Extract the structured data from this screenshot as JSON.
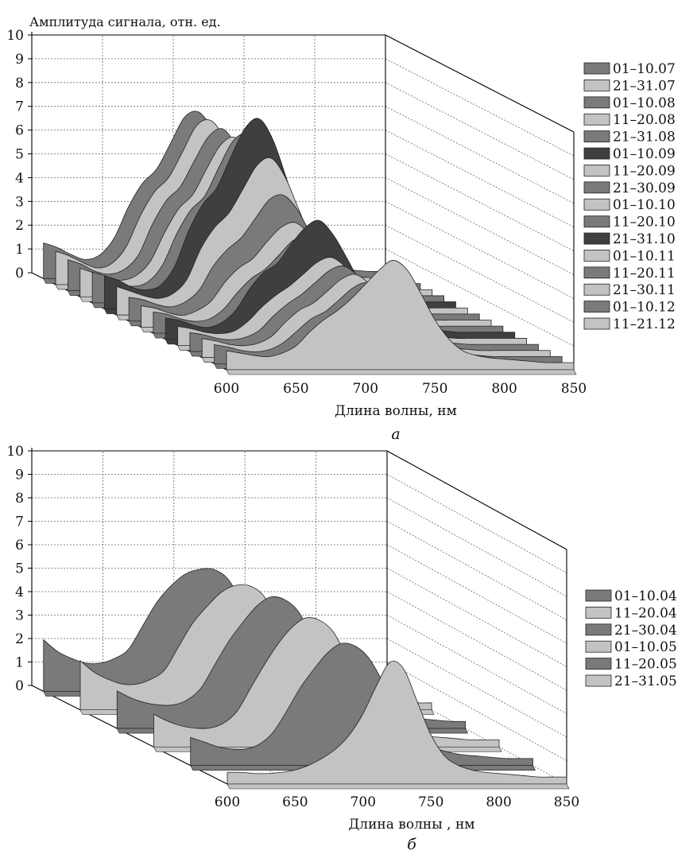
{
  "colors": {
    "dark": "#3f3f3f",
    "medium": "#7a7a7a",
    "light": "#c3c3c3",
    "axis": "#000000",
    "grid": "#666666"
  },
  "chart_data": [
    {
      "type": "area",
      "subtype": "3d-waterfall",
      "panel_label": "а",
      "ylabel": "Амплитуда сигнала, отн. ед.",
      "xlabel": "Длина волны, нм",
      "x_ticks": [
        "600",
        "650",
        "700",
        "750",
        "800",
        "850"
      ],
      "y_ticks": [
        "0",
        "1",
        "2",
        "3",
        "4",
        "5",
        "6",
        "7",
        "8",
        "9",
        "10"
      ],
      "xlim": [
        600,
        850
      ],
      "ylim": [
        0,
        10
      ],
      "grid": true,
      "legend_position": "right",
      "wavelengths": [
        600,
        610,
        620,
        630,
        640,
        650,
        660,
        670,
        680,
        690,
        700,
        710,
        720,
        730,
        740,
        750,
        760,
        770,
        780,
        790,
        800,
        810,
        820,
        830,
        840,
        850
      ],
      "series": [
        {
          "name": "01–10.07",
          "color": "medium",
          "values": [
            1.5,
            1.3,
            1.0,
            0.8,
            1.0,
            1.7,
            3.0,
            4.0,
            4.6,
            5.7,
            6.8,
            7.0,
            6.2,
            4.8,
            3.3,
            2.0,
            1.2,
            0.8,
            0.6,
            0.5,
            0.45,
            0.4,
            0.35,
            0.3,
            0.3,
            0.3
          ]
        },
        {
          "name": "21–31.07",
          "color": "light",
          "values": [
            1.4,
            1.2,
            0.9,
            0.7,
            0.9,
            1.6,
            2.9,
            3.9,
            4.5,
            5.6,
            6.7,
            6.9,
            6.1,
            4.7,
            3.2,
            1.9,
            1.1,
            0.7,
            0.55,
            0.45,
            0.4,
            0.35,
            0.3,
            0.3,
            0.3,
            0.3
          ]
        },
        {
          "name": "01–10.08",
          "color": "medium",
          "values": [
            1.3,
            1.1,
            0.8,
            0.7,
            0.9,
            1.5,
            2.8,
            3.8,
            4.4,
            5.5,
            6.5,
            6.8,
            6.0,
            4.6,
            3.1,
            1.9,
            1.1,
            0.7,
            0.55,
            0.45,
            0.4,
            0.35,
            0.3,
            0.3,
            0.3,
            0.3
          ]
        },
        {
          "name": "11–20.08",
          "color": "light",
          "values": [
            1.2,
            1.0,
            0.8,
            0.7,
            0.9,
            1.5,
            2.7,
            3.7,
            4.3,
            5.4,
            6.4,
            6.7,
            5.9,
            4.5,
            3.0,
            1.8,
            1.0,
            0.7,
            0.5,
            0.4,
            0.4,
            0.35,
            0.3,
            0.3,
            0.3,
            0.3
          ]
        },
        {
          "name": "21–31.08",
          "color": "medium",
          "values": [
            1.3,
            1.1,
            0.8,
            0.7,
            0.9,
            1.6,
            2.9,
            3.9,
            4.5,
            5.7,
            6.8,
            7.1,
            6.3,
            4.8,
            3.3,
            2.0,
            1.1,
            0.7,
            0.55,
            0.45,
            0.4,
            0.35,
            0.3,
            0.3,
            0.3,
            0.3
          ]
        },
        {
          "name": "01–10.09",
          "color": "dark",
          "values": [
            1.4,
            1.2,
            0.9,
            0.8,
            1.0,
            1.8,
            3.3,
            4.4,
            5.1,
            6.4,
            7.6,
            8.0,
            7.1,
            5.4,
            3.6,
            2.2,
            1.2,
            0.8,
            0.6,
            0.5,
            0.45,
            0.4,
            0.35,
            0.3,
            0.3,
            0.3
          ]
        },
        {
          "name": "11–20.09",
          "color": "light",
          "values": [
            1.2,
            1.0,
            0.8,
            0.7,
            0.9,
            1.5,
            2.8,
            3.7,
            4.3,
            5.3,
            6.3,
            6.6,
            5.8,
            4.4,
            3.0,
            1.8,
            1.0,
            0.7,
            0.5,
            0.4,
            0.4,
            0.35,
            0.3,
            0.3,
            0.3,
            0.3
          ]
        },
        {
          "name": "21–30.09",
          "color": "medium",
          "values": [
            1.0,
            0.9,
            0.7,
            0.6,
            0.8,
            1.3,
            2.3,
            3.0,
            3.5,
            4.3,
            5.1,
            5.3,
            4.7,
            3.6,
            2.4,
            1.5,
            0.9,
            0.6,
            0.5,
            0.4,
            0.35,
            0.3,
            0.3,
            0.3,
            0.3,
            0.3
          ]
        },
        {
          "name": "01–10.10",
          "color": "light",
          "values": [
            0.9,
            0.8,
            0.6,
            0.5,
            0.7,
            1.1,
            1.9,
            2.5,
            2.9,
            3.6,
            4.2,
            4.4,
            3.9,
            3.0,
            2.0,
            1.3,
            0.8,
            0.55,
            0.45,
            0.4,
            0.35,
            0.3,
            0.3,
            0.3,
            0.3,
            0.3
          ]
        },
        {
          "name": "11–20.10",
          "color": "medium",
          "values": [
            0.9,
            0.8,
            0.6,
            0.5,
            0.6,
            1.0,
            1.7,
            2.3,
            2.7,
            3.3,
            3.9,
            4.1,
            3.6,
            2.8,
            1.9,
            1.2,
            0.7,
            0.5,
            0.4,
            0.35,
            0.3,
            0.3,
            0.3,
            0.3,
            0.3,
            0.3
          ]
        },
        {
          "name": "21–31.10",
          "color": "dark",
          "values": [
            0.9,
            0.8,
            0.6,
            0.5,
            0.7,
            1.2,
            2.1,
            2.8,
            3.2,
            4.0,
            4.7,
            5.0,
            4.4,
            3.4,
            2.3,
            1.4,
            0.8,
            0.55,
            0.45,
            0.4,
            0.35,
            0.3,
            0.3,
            0.3,
            0.3,
            0.3
          ]
        },
        {
          "name": "01–10.11",
          "color": "light",
          "values": [
            0.8,
            0.7,
            0.55,
            0.5,
            0.6,
            1.0,
            1.6,
            2.1,
            2.5,
            3.0,
            3.5,
            3.7,
            3.3,
            2.5,
            1.7,
            1.1,
            0.7,
            0.5,
            0.4,
            0.35,
            0.3,
            0.3,
            0.3,
            0.3,
            0.3,
            0.3
          ]
        },
        {
          "name": "11–20.11",
          "color": "medium",
          "values": [
            0.8,
            0.7,
            0.55,
            0.5,
            0.6,
            0.9,
            1.5,
            2.0,
            2.4,
            2.9,
            3.4,
            3.6,
            3.2,
            2.4,
            1.6,
            1.0,
            0.65,
            0.5,
            0.4,
            0.35,
            0.3,
            0.3,
            0.3,
            0.3,
            0.3,
            0.3
          ]
        },
        {
          "name": "21–30.11",
          "color": "light",
          "values": [
            0.8,
            0.7,
            0.55,
            0.5,
            0.6,
            0.9,
            1.5,
            2.0,
            2.3,
            2.8,
            3.3,
            3.5,
            3.1,
            2.4,
            1.6,
            1.0,
            0.65,
            0.5,
            0.4,
            0.35,
            0.3,
            0.3,
            0.3,
            0.3,
            0.3,
            0.3
          ]
        },
        {
          "name": "01–10.12",
          "color": "medium",
          "values": [
            0.8,
            0.7,
            0.55,
            0.5,
            0.6,
            0.9,
            1.4,
            1.9,
            2.2,
            2.7,
            3.2,
            3.4,
            3.0,
            2.3,
            1.5,
            1.0,
            0.65,
            0.5,
            0.4,
            0.35,
            0.3,
            0.3,
            0.3,
            0.3,
            0.3,
            0.3
          ]
        },
        {
          "name": "11–21.12",
          "color": "light",
          "values": [
            0.8,
            0.7,
            0.6,
            0.55,
            0.7,
            1.0,
            1.6,
            2.1,
            2.5,
            3.0,
            3.6,
            4.2,
            4.6,
            4.2,
            3.2,
            2.1,
            1.3,
            0.8,
            0.6,
            0.5,
            0.45,
            0.4,
            0.35,
            0.3,
            0.3,
            0.3
          ]
        }
      ]
    },
    {
      "type": "area",
      "subtype": "3d-waterfall",
      "panel_label": "б",
      "ylabel": "",
      "xlabel": "Длина волны , нм",
      "x_ticks": [
        "600",
        "650",
        "700",
        "750",
        "800",
        "850"
      ],
      "y_ticks": [
        "0",
        "1",
        "2",
        "3",
        "4",
        "5",
        "6",
        "7",
        "8",
        "9",
        "10"
      ],
      "xlim": [
        600,
        850
      ],
      "ylim": [
        0,
        10
      ],
      "grid": true,
      "legend_position": "right",
      "wavelengths": [
        600,
        610,
        620,
        630,
        640,
        650,
        660,
        670,
        680,
        690,
        700,
        710,
        720,
        730,
        740,
        750,
        760,
        770,
        780,
        790,
        800,
        810,
        820,
        830,
        840,
        850
      ],
      "series": [
        {
          "name": "01–10.04",
          "color": "medium",
          "values": [
            2.2,
            1.7,
            1.4,
            1.2,
            1.2,
            1.4,
            1.8,
            2.8,
            3.8,
            4.5,
            5.0,
            5.2,
            5.2,
            4.8,
            3.8,
            2.6,
            1.6,
            1.1,
            0.8,
            0.6,
            0.5,
            0.45,
            0.4,
            0.35,
            0.3,
            0.3
          ]
        },
        {
          "name": "11–20.04",
          "color": "light",
          "values": [
            2.1,
            1.6,
            1.3,
            1.1,
            1.1,
            1.3,
            1.7,
            2.7,
            3.7,
            4.4,
            5.0,
            5.3,
            5.3,
            4.9,
            3.9,
            2.6,
            1.6,
            1.1,
            0.8,
            0.6,
            0.5,
            0.45,
            0.4,
            0.35,
            0.3,
            0.3
          ]
        },
        {
          "name": "21–30.04",
          "color": "medium",
          "values": [
            1.6,
            1.3,
            1.1,
            1.0,
            1.0,
            1.2,
            1.7,
            2.7,
            3.7,
            4.5,
            5.2,
            5.6,
            5.5,
            5.0,
            3.9,
            2.6,
            1.6,
            1.1,
            0.8,
            0.6,
            0.5,
            0.45,
            0.4,
            0.35,
            0.3,
            0.3
          ]
        },
        {
          "name": "01–10.05",
          "color": "light",
          "values": [
            1.4,
            1.1,
            0.9,
            0.8,
            0.8,
            1.0,
            1.5,
            2.5,
            3.5,
            4.4,
            5.1,
            5.5,
            5.4,
            4.9,
            3.8,
            2.5,
            1.5,
            1.0,
            0.7,
            0.55,
            0.45,
            0.4,
            0.35,
            0.3,
            0.3,
            0.3
          ]
        },
        {
          "name": "11–20.05",
          "color": "medium",
          "values": [
            1.2,
            1.0,
            0.8,
            0.7,
            0.7,
            0.9,
            1.4,
            2.3,
            3.3,
            4.1,
            4.8,
            5.2,
            5.1,
            4.6,
            3.6,
            2.4,
            1.4,
            0.9,
            0.7,
            0.55,
            0.45,
            0.4,
            0.35,
            0.3,
            0.3,
            0.3
          ]
        },
        {
          "name": "21–31.05",
          "color": "light",
          "values": [
            0.5,
            0.5,
            0.45,
            0.45,
            0.5,
            0.6,
            0.8,
            1.1,
            1.5,
            2.1,
            3.0,
            4.2,
            5.2,
            4.9,
            3.5,
            2.1,
            1.2,
            0.8,
            0.6,
            0.5,
            0.45,
            0.4,
            0.35,
            0.3,
            0.3,
            0.3
          ]
        }
      ]
    }
  ]
}
